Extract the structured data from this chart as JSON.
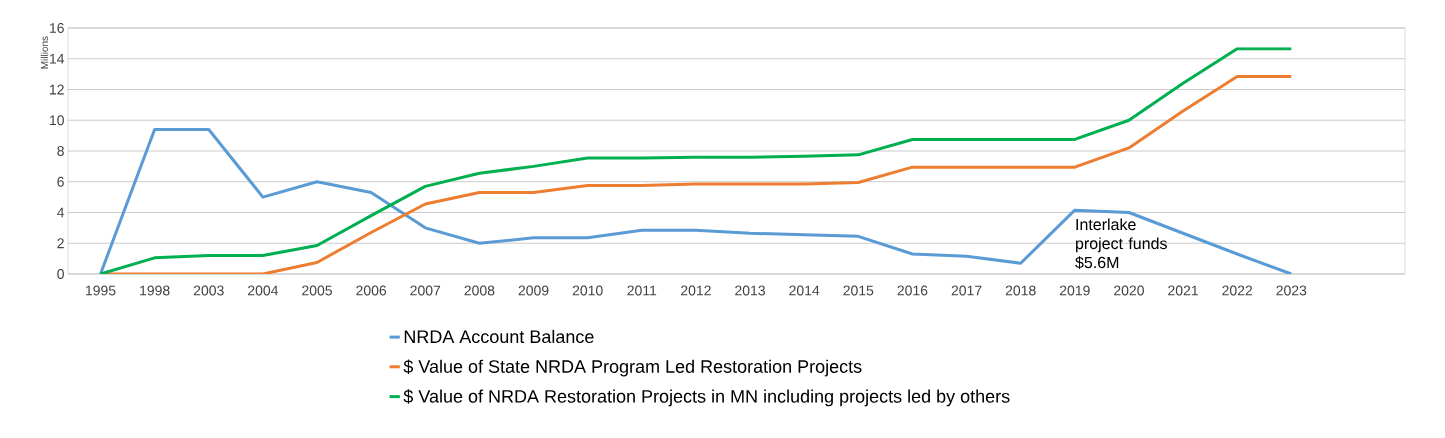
{
  "chart_data": {
    "type": "line",
    "ylabel": "Millions",
    "categories": [
      "1995",
      "1998",
      "2003",
      "2004",
      "2005",
      "2006",
      "2007",
      "2008",
      "2009",
      "2010",
      "2011",
      "2012",
      "2013",
      "2014",
      "2015",
      "2016",
      "2017",
      "2018",
      "2019",
      "2020",
      "2021",
      "2022",
      "2023"
    ],
    "series": [
      {
        "name": "NRDA Account Balance",
        "color": "#5b9bd5",
        "values": [
          0,
          9.4,
          9.4,
          5.0,
          6.0,
          5.3,
          3.0,
          2.0,
          2.35,
          2.35,
          2.85,
          2.85,
          2.65,
          2.55,
          2.45,
          1.3,
          1.15,
          0.7,
          4.15,
          4.0,
          2.65,
          1.3,
          0
        ]
      },
      {
        "name": "$ Value of State NRDA Program Led Restoration Projects",
        "color": "#ed7d31",
        "values": [
          0,
          0,
          0,
          0,
          0.75,
          2.7,
          4.55,
          5.3,
          5.3,
          5.75,
          5.75,
          5.85,
          5.85,
          5.85,
          5.95,
          6.95,
          6.95,
          6.95,
          6.95,
          8.2,
          10.6,
          12.85,
          12.85
        ]
      },
      {
        "name": "$ Value of NRDA Restoration Projects in MN  including projects led by others",
        "color": "#00b050",
        "values": [
          0,
          1.05,
          1.2,
          1.2,
          1.85,
          3.8,
          5.7,
          6.55,
          7.0,
          7.55,
          7.55,
          7.6,
          7.6,
          7.65,
          7.75,
          8.75,
          8.75,
          8.75,
          8.75,
          10.0,
          12.4,
          14.65,
          14.65
        ]
      }
    ],
    "ylim": [
      0,
      16
    ],
    "yticks": [
      0,
      2,
      4,
      6,
      8,
      10,
      12,
      14,
      16
    ],
    "grid": "y",
    "legend": "bottom",
    "marker": "none",
    "line_style": "solid",
    "annotations": [
      {
        "text": "Interlake project funds $5.6M",
        "x": "2019",
        "y": 4.15
      }
    ]
  }
}
